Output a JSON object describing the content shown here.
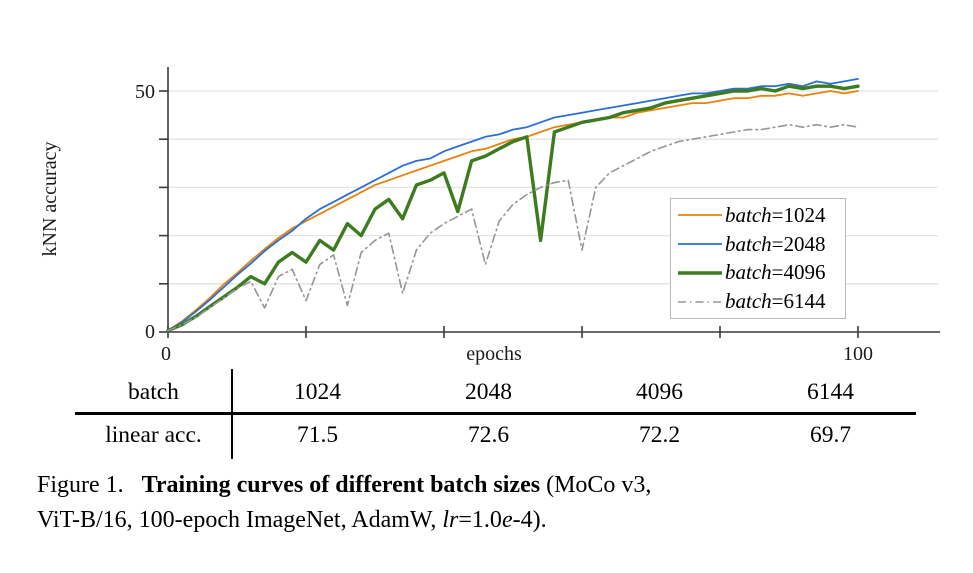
{
  "chart_data": {
    "type": "line",
    "title": "",
    "xlabel": "epochs",
    "ylabel": "kNN accuracy",
    "xlim": [
      0,
      112
    ],
    "ylim": [
      0,
      55
    ],
    "xticks": [
      0,
      20,
      40,
      60,
      80,
      100
    ],
    "yticks": [
      0,
      10,
      20,
      30,
      40,
      50
    ],
    "grid": "horizontal",
    "legend_position": "lower right",
    "axis_labels": {
      "x_min": "0",
      "x_max": "100",
      "y_min": "0",
      "y_max": "50"
    },
    "x": [
      0,
      2,
      4,
      6,
      8,
      10,
      12,
      14,
      16,
      18,
      20,
      22,
      24,
      26,
      28,
      30,
      32,
      34,
      36,
      38,
      40,
      42,
      44,
      46,
      48,
      50,
      52,
      54,
      56,
      58,
      60,
      62,
      64,
      66,
      68,
      70,
      72,
      74,
      76,
      78,
      80,
      82,
      84,
      86,
      88,
      90,
      92,
      94,
      96,
      98,
      100
    ],
    "series": [
      {
        "name": "batch=1024",
        "color": "#E8820E",
        "width": 1.8,
        "dash": "",
        "values": [
          0.3,
          2.2,
          4.5,
          7,
          9.8,
          12.2,
          14.8,
          17.2,
          19.5,
          21.5,
          23,
          24.5,
          26,
          27.5,
          29,
          30.5,
          31.5,
          32.5,
          33.5,
          34.5,
          35.5,
          36.5,
          37.5,
          38,
          39,
          40,
          40.5,
          41.5,
          42.5,
          43,
          43.5,
          44,
          44.5,
          44.5,
          45.5,
          46,
          46.5,
          47,
          47.5,
          47.5,
          48,
          48.5,
          48.5,
          49,
          49,
          49.5,
          49,
          49.5,
          50,
          49.5,
          50
        ]
      },
      {
        "name": "batch=2048",
        "color": "#2B6FD4",
        "width": 1.8,
        "dash": "",
        "values": [
          0.3,
          2,
          4.2,
          6.6,
          9.2,
          11.8,
          14.2,
          16.8,
          19,
          21,
          23.5,
          25.5,
          27,
          28.5,
          30,
          31.5,
          33,
          34.5,
          35.5,
          36,
          37.5,
          38.5,
          39.5,
          40.5,
          41,
          42,
          42.5,
          43.5,
          44.5,
          45,
          45.5,
          46,
          46.5,
          47,
          47.5,
          48,
          48.5,
          49,
          49.5,
          49.5,
          50,
          50.5,
          50.5,
          51,
          51,
          51.5,
          51,
          52,
          51.5,
          52,
          52.5
        ]
      },
      {
        "name": "batch=4096",
        "color": "#3C7B1E",
        "width": 3.4,
        "dash": "",
        "values": [
          0.3,
          1.5,
          3.2,
          5.2,
          7.2,
          9.2,
          11.5,
          10,
          14.5,
          16.5,
          14.5,
          19,
          17,
          22.5,
          20,
          25.5,
          27.5,
          23.5,
          30.5,
          31.5,
          33,
          25,
          35.5,
          36.5,
          38,
          39.5,
          40.5,
          19,
          41.5,
          42.5,
          43.5,
          44,
          44.5,
          45.5,
          46,
          46.5,
          47.5,
          48,
          48.5,
          49,
          49.5,
          50,
          50,
          50.5,
          50,
          51,
          50.5,
          51,
          51,
          50.5,
          51
        ]
      },
      {
        "name": "batch=6144",
        "color": "#959595",
        "width": 1.6,
        "dash": "8 4 1.5 4",
        "values": [
          0.3,
          1.5,
          3,
          5,
          7,
          9,
          10.5,
          5,
          11.5,
          13,
          6.5,
          14,
          16,
          5.5,
          16.5,
          19,
          20.5,
          8,
          17,
          20.5,
          22.5,
          24,
          25.5,
          14,
          23,
          26.5,
          28.5,
          30,
          31,
          31.5,
          17,
          30,
          33,
          34.5,
          36,
          37.5,
          38.5,
          39.5,
          40,
          40.5,
          41,
          41.5,
          42,
          42,
          42.5,
          43,
          42.5,
          43,
          42.5,
          43,
          42.5
        ]
      }
    ],
    "legend": [
      {
        "var": "batch",
        "value": "=1024"
      },
      {
        "var": "batch",
        "value": "=2048"
      },
      {
        "var": "batch",
        "value": "=4096"
      },
      {
        "var": "batch",
        "value": "=6144"
      }
    ]
  },
  "table": {
    "header_label": "batch",
    "row_label": "linear acc.",
    "columns": [
      "1024",
      "2048",
      "4096",
      "6144"
    ],
    "values": [
      "71.5",
      "72.6",
      "72.2",
      "69.7"
    ]
  },
  "caption": {
    "line1": [
      {
        "text": "Figure 1.   ",
        "style": "normal"
      },
      {
        "text": "Training curves of different batch sizes",
        "style": "bold"
      },
      {
        "text": " (MoCo v3,",
        "style": "normal"
      }
    ],
    "line2": [
      {
        "text": "ViT-B/16, 100-epoch ImageNet, AdamW, ",
        "style": "normal"
      },
      {
        "text": "lr",
        "style": "italic"
      },
      {
        "text": "=1.0",
        "style": "normal"
      },
      {
        "text": "e",
        "style": "italic"
      },
      {
        "text": "-4).",
        "style": "normal"
      }
    ]
  },
  "style": {
    "axis_color": "#3a3a3a",
    "grid_color": "#e3e3e3",
    "text_color": "#1a1a1a"
  }
}
